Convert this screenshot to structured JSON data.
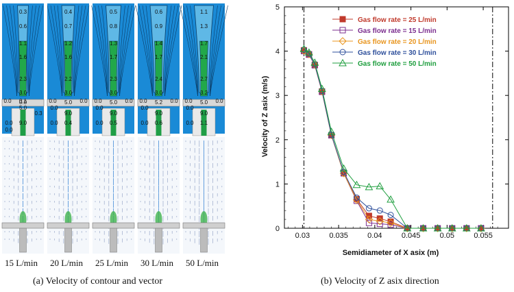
{
  "panel_a": {
    "caption": "(a) Velocity of contour and vector",
    "columns": [
      {
        "label": "15 L/min",
        "contour_labels": [
          "0.3",
          "0.6",
          "1.1",
          "1.6",
          "2.3",
          "3.0",
          "0.0",
          "0.1",
          "0.0",
          "5.0",
          "0.0",
          "0.3",
          "9.0",
          "0.0"
        ]
      },
      {
        "label": "20 L/min",
        "contour_labels": [
          "0.4",
          "0.7",
          "1.2",
          "1.6",
          "2.2",
          "3.0",
          "0.0",
          "0.0",
          "5.0",
          "0.0",
          "0.4",
          "9.0",
          "0.0"
        ]
      },
      {
        "label": "25 L/min",
        "contour_labels": [
          "0.5",
          "0.8",
          "1.3",
          "1.7",
          "2.3",
          "3.0",
          "0.0",
          "0.0",
          "5.0",
          "0.0",
          "0.5",
          "9.0",
          "0.0"
        ]
      },
      {
        "label": "30 L/min",
        "contour_labels": [
          "0.6",
          "0.9",
          "1.4",
          "1.7",
          "2.4",
          "3.0",
          "0.0",
          "0.0",
          "5.2",
          "0.0",
          "0.6",
          "9.0",
          "0.0"
        ]
      },
      {
        "label": "50 L/min",
        "contour_labels": [
          "1.1",
          "1.3",
          "1.7",
          "2.1",
          "2.7",
          "3.2",
          "0.0",
          "0.0",
          "5.0",
          "0.0",
          "1.1",
          "9.0",
          "0.0"
        ]
      }
    ]
  },
  "panel_b": {
    "caption": "(b) Velocity of Z asix direction"
  },
  "chart_data": {
    "type": "line",
    "xlabel": "Semidiameter of X asix (m)",
    "ylabel": "Velocity of Z asix (m/s)",
    "xlim": [
      0.0275,
      0.0585
    ],
    "ylim": [
      0,
      5
    ],
    "xticks": [
      "0.03",
      "0.035",
      "0.04",
      "0.045",
      "0.05",
      "0.055"
    ],
    "xtick_values": [
      0.03,
      0.035,
      0.04,
      0.045,
      0.05,
      0.055
    ],
    "yticks": [
      "0",
      "1",
      "2",
      "3",
      "4",
      "5"
    ],
    "ytick_values": [
      0,
      1,
      2,
      3,
      4,
      5
    ],
    "reference_lines_x": [
      0.0302,
      0.0563
    ],
    "legend_position": "top-right",
    "grid": false,
    "series": [
      {
        "name": "Gas flow rate = 25 L/min",
        "color": "#c0392b",
        "marker": "filled-square",
        "x": [
          0.0302,
          0.0309,
          0.0317,
          0.0327,
          0.034,
          0.0357,
          0.0375,
          0.0392,
          0.0407,
          0.0422,
          0.0445,
          0.0467,
          0.0487,
          0.0507,
          0.0527,
          0.0547
        ],
        "y": [
          4.02,
          3.93,
          3.69,
          3.09,
          2.1,
          1.25,
          0.66,
          0.28,
          0.22,
          0.15,
          0.0,
          0.0,
          0.0,
          0.0,
          0.0,
          0.0
        ]
      },
      {
        "name": "Gas flow rate = 15 L/min",
        "color": "#7b2d8e",
        "marker": "open-square",
        "x": [
          0.0302,
          0.0309,
          0.0317,
          0.0327,
          0.034,
          0.0357,
          0.0375,
          0.0392,
          0.0407,
          0.0422,
          0.0445,
          0.0467,
          0.0487,
          0.0507,
          0.0527,
          0.0547
        ],
        "y": [
          4.0,
          3.92,
          3.68,
          3.08,
          2.1,
          1.24,
          0.62,
          0.12,
          0.1,
          0.08,
          0.0,
          0.0,
          0.0,
          0.0,
          0.0,
          0.0
        ]
      },
      {
        "name": "Gas flow rate = 20 L/min",
        "color": "#e8951e",
        "marker": "open-diamond",
        "x": [
          0.0302,
          0.0309,
          0.0317,
          0.0327,
          0.034,
          0.0357,
          0.0375,
          0.0392,
          0.0407,
          0.0422,
          0.0445,
          0.0467,
          0.0487,
          0.0507,
          0.0527,
          0.0547
        ],
        "y": [
          4.01,
          3.93,
          3.69,
          3.09,
          2.1,
          1.24,
          0.64,
          0.2,
          0.16,
          0.12,
          0.0,
          0.0,
          0.0,
          0.0,
          0.0,
          0.0
        ]
      },
      {
        "name": "Gas flow rate = 30 L/min",
        "color": "#2e4f9b",
        "marker": "open-circle",
        "x": [
          0.0302,
          0.0309,
          0.0317,
          0.0327,
          0.034,
          0.0357,
          0.0375,
          0.0392,
          0.0407,
          0.0422,
          0.0445,
          0.0467,
          0.0487,
          0.0507,
          0.0527,
          0.0547
        ],
        "y": [
          4.03,
          3.94,
          3.7,
          3.1,
          2.11,
          1.27,
          0.69,
          0.45,
          0.4,
          0.3,
          0.0,
          0.0,
          0.0,
          0.0,
          0.0,
          0.0
        ]
      },
      {
        "name": "Gas flow rate = 50 L/min",
        "color": "#1e9e3e",
        "marker": "open-triangle",
        "x": [
          0.0302,
          0.0309,
          0.0317,
          0.0327,
          0.034,
          0.0357,
          0.0375,
          0.0392,
          0.0407,
          0.0422,
          0.0445,
          0.0467,
          0.0487,
          0.0507,
          0.0527,
          0.0547
        ],
        "y": [
          4.05,
          3.97,
          3.74,
          3.15,
          2.18,
          1.35,
          0.98,
          0.93,
          0.95,
          0.65,
          0.0,
          0.0,
          0.0,
          0.0,
          0.0,
          0.0
        ]
      }
    ]
  }
}
